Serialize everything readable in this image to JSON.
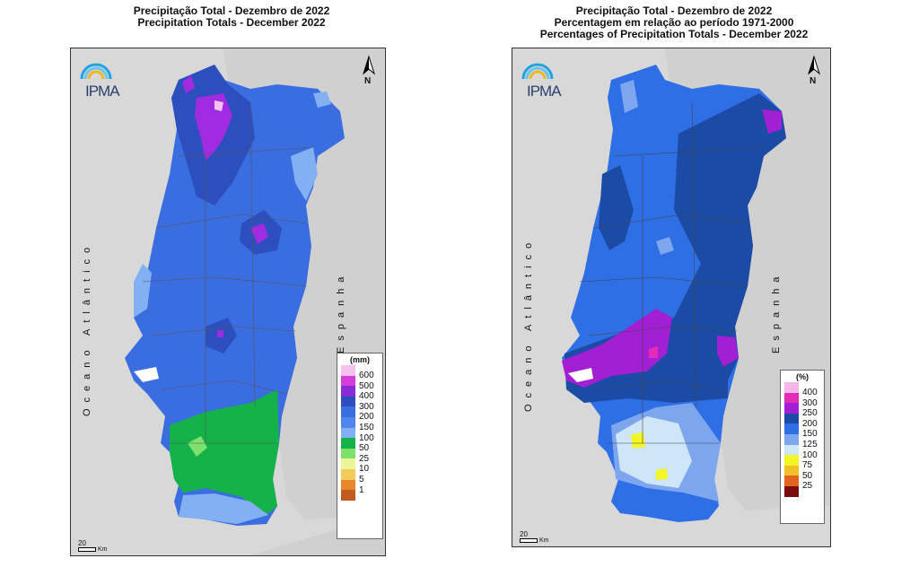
{
  "left_map": {
    "title_pt": "Precipitação Total  -  Dezembro de 2022",
    "title_en": "Precipitation Totals - December 2022",
    "logo_text": "IPMA",
    "north_label": "N",
    "ocean_label": "Oceano Atlântico",
    "spain_label": "Espanha",
    "legend_title": "(mm)",
    "legend_labels": [
      "600",
      "500",
      "400",
      "300",
      "200",
      "150",
      "100",
      "50",
      "25",
      "10",
      "5",
      "1"
    ],
    "legend_colors": [
      "#f4c2ec",
      "#d53ed8",
      "#8a2bd6",
      "#2d4fbd",
      "#3a6ee0",
      "#4f86ee",
      "#82b0f2",
      "#15b24a",
      "#7fe06e",
      "#eef596",
      "#f2cc5a",
      "#e8862c",
      "#c05a1e"
    ],
    "scale_value": "20",
    "scale_unit": "Km"
  },
  "right_map": {
    "title_pt": "Precipitação Total  -  Dezembro de 2022",
    "title_ref": "Percentagem em relação ao período 1971-2000",
    "title_en": "Percentages of Precipitation Totals - December 2022",
    "logo_text": "IPMA",
    "north_label": "N",
    "ocean_label": "Oceano Atlântico",
    "spain_label": "Espanha",
    "legend_title": "(%)",
    "legend_labels": [
      "400",
      "300",
      "250",
      "200",
      "150",
      "125",
      "100",
      "75",
      "50",
      "25"
    ],
    "legend_colors": [
      "#f6b6e8",
      "#e02cb6",
      "#a21fd4",
      "#1c4ba6",
      "#2f6fe6",
      "#7ea6ee",
      "#cfe6f8",
      "#f2f526",
      "#f1c12c",
      "#e2651f",
      "#7a0d0d"
    ],
    "scale_value": "20",
    "scale_unit": "Km"
  }
}
